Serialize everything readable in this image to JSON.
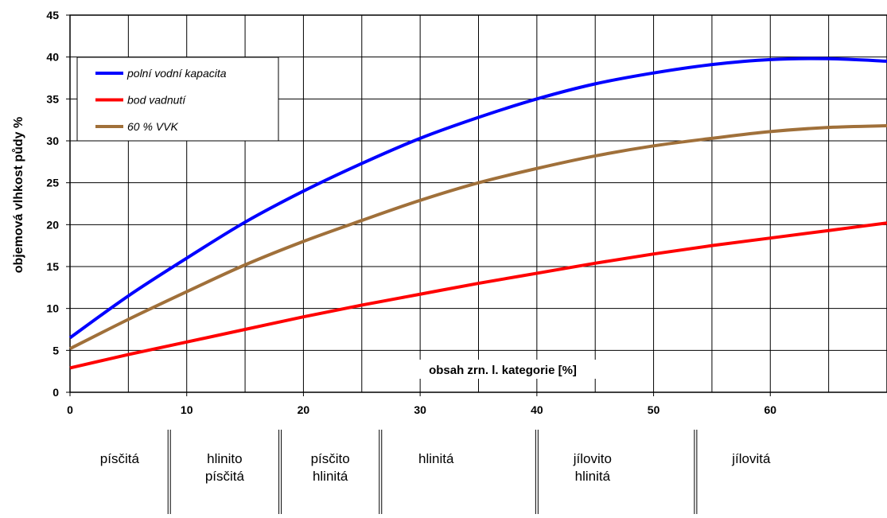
{
  "chart_data": {
    "type": "line",
    "x_label": "obsah zrn. l. kategorie [%]",
    "y_label": "objemová vlhkost půdy %",
    "x": [
      0,
      5,
      10,
      15,
      20,
      25,
      30,
      35,
      40,
      45,
      50,
      55,
      60,
      65,
      70
    ],
    "series": [
      {
        "name": "polní vodní kapacita",
        "color": "#0000ff",
        "values": [
          6.5,
          11.5,
          16,
          20.3,
          24,
          27.3,
          30.3,
          32.8,
          35,
          36.8,
          38.1,
          39.1,
          39.7,
          39.8,
          39.5
        ]
      },
      {
        "name": "bod vadnutí",
        "color": "#ff0000",
        "values": [
          2.9,
          4.5,
          6.0,
          7.5,
          9.0,
          10.4,
          11.7,
          13.0,
          14.2,
          15.4,
          16.5,
          17.5,
          18.4,
          19.3,
          20.2
        ]
      },
      {
        "name": "60 % VVK",
        "color": "#a0703a",
        "values": [
          5.2,
          8.7,
          12,
          15.2,
          18,
          20.5,
          22.9,
          25,
          26.7,
          28.2,
          29.4,
          30.3,
          31.1,
          31.6,
          31.8
        ]
      }
    ],
    "xlim": [
      0,
      70
    ],
    "xticks": [
      0,
      10,
      20,
      30,
      40,
      50,
      60
    ],
    "x_minor_grid": [
      5,
      15,
      25,
      35,
      45,
      55,
      65
    ],
    "ylim": [
      0,
      45
    ],
    "yticks": [
      0,
      5,
      10,
      15,
      20,
      25,
      30,
      35,
      40,
      45
    ],
    "grid": true,
    "legend": "upper left",
    "soil_classes": {
      "labels": [
        [
          "písčitá"
        ],
        [
          "hlinito",
          "písčitá"
        ],
        [
          "písčito",
          "hlinitá"
        ],
        [
          "hlinitá"
        ],
        [
          "jílovito",
          "hlinitá"
        ],
        [
          "jílovitá"
        ]
      ],
      "bounds": [
        8.5,
        18,
        26.6,
        40,
        53.6
      ]
    }
  }
}
